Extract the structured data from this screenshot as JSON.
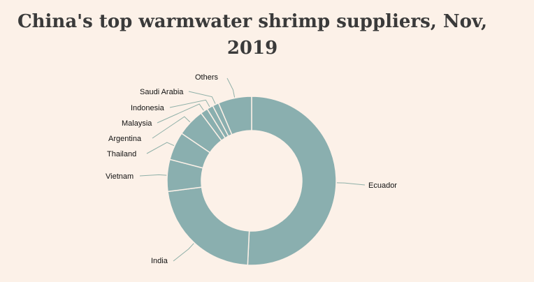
{
  "chart_data": {
    "type": "pie",
    "donut": true,
    "title": "China's top warmwater shrimp suppliers, Nov, 2019",
    "unit": "percent share (estimated)",
    "slices": [
      {
        "label": "Ecuador",
        "value": 50.7
      },
      {
        "label": "India",
        "value": 22.2
      },
      {
        "label": "Vietnam",
        "value": 6.1
      },
      {
        "label": "Thailand",
        "value": 5.4
      },
      {
        "label": "Argentina",
        "value": 5.3
      },
      {
        "label": "Malaysia",
        "value": 1.4
      },
      {
        "label": "Indonesia",
        "value": 1.2
      },
      {
        "label": "Saudi Arabia",
        "value": 1.2
      },
      {
        "label": "Others",
        "value": 6.4
      }
    ],
    "colors": {
      "slice": "#8aafaf",
      "separator": "#fcf1e8",
      "leader": "#8fb0a8"
    }
  }
}
